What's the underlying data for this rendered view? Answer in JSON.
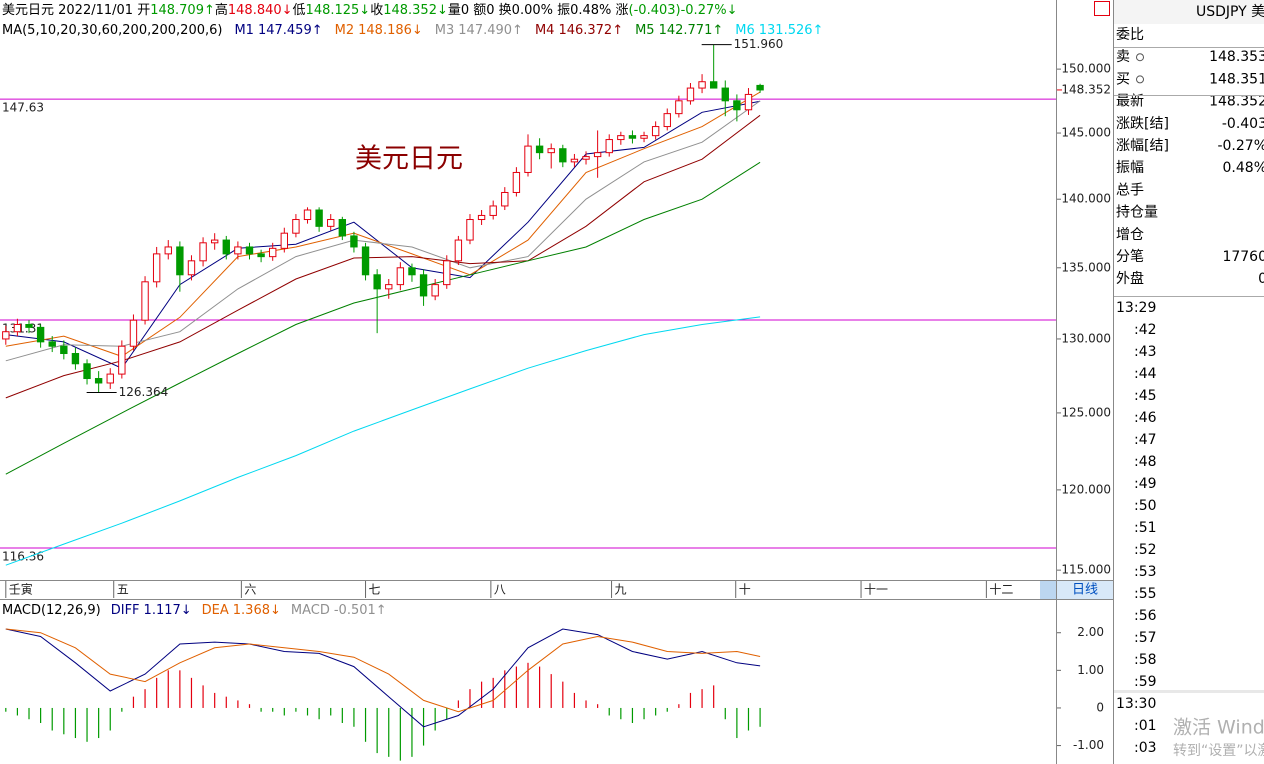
{
  "header": {
    "line1": [
      {
        "text": "美元日元 2022/11/01 开",
        "color": "#000000"
      },
      {
        "text": "148.709↑",
        "color": "#009a00"
      },
      {
        "text": "高",
        "color": "#000000"
      },
      {
        "text": "148.840↓",
        "color": "#e4000f"
      },
      {
        "text": "低",
        "color": "#000000"
      },
      {
        "text": "148.125↓",
        "color": "#009a00"
      },
      {
        "text": "收",
        "color": "#000000"
      },
      {
        "text": "148.352↓",
        "color": "#009a00"
      },
      {
        "text": "量0 额0 换0.00% 振0.48% 涨",
        "color": "#000000"
      },
      {
        "text": "(-0.403)-0.27%↓",
        "color": "#009a00"
      }
    ]
  },
  "chart_data": [
    {
      "type": "candlestick",
      "title": "美元日元",
      "legend_title": "MA(5,10,20,30,60,200,200,200,6)",
      "period": "日线",
      "log": true,
      "grid": false,
      "up_color": "#e4000f",
      "down_color": "#009a00",
      "hline_color": "#d000d0",
      "xlim": [
        -0.5,
        90.5
      ],
      "ylim": [
        114.4,
        155.6
      ],
      "xticks": [
        {
          "value": 0,
          "label": "壬寅"
        },
        {
          "value": 9.3,
          "label": "五"
        },
        {
          "value": 20.3,
          "label": "六"
        },
        {
          "value": 31,
          "label": "七"
        },
        {
          "value": 41.8,
          "label": "八"
        },
        {
          "value": 52.2,
          "label": "九"
        },
        {
          "value": 62.9,
          "label": "十"
        },
        {
          "value": 73.7,
          "label": "十一"
        },
        {
          "value": 84.5,
          "label": "十二"
        }
      ],
      "yticks": [
        {
          "value": 150,
          "label": "150.000"
        },
        {
          "value": 145,
          "label": "145.000"
        },
        {
          "value": 140,
          "label": "140.000"
        },
        {
          "value": 135,
          "label": "135.000"
        },
        {
          "value": 130,
          "label": "130.000"
        },
        {
          "value": 125,
          "label": "125.000"
        },
        {
          "value": 120,
          "label": "120.000"
        },
        {
          "value": 115,
          "label": "115.000"
        }
      ],
      "x": [
        0,
        1,
        2,
        3,
        4,
        5,
        6,
        7,
        8,
        9,
        10,
        11,
        12,
        13,
        14,
        15,
        16,
        17,
        18,
        19,
        20,
        21,
        22,
        23,
        24,
        25,
        26,
        27,
        28,
        29,
        30,
        31,
        32,
        33,
        34,
        35,
        36,
        37,
        38,
        39,
        40,
        41,
        42,
        43,
        44,
        45,
        46,
        47,
        48,
        49,
        50,
        51,
        52,
        53,
        54,
        55,
        56,
        57,
        58,
        59,
        60,
        61,
        62,
        63,
        64,
        65
      ],
      "open": [
        130.0,
        130.5,
        131.0,
        130.8,
        129.8,
        129.5,
        129.0,
        128.3,
        127.3,
        127.0,
        127.6,
        129.5,
        131.3,
        134.0,
        136.0,
        136.5,
        134.5,
        135.5,
        136.8,
        137.0,
        136.0,
        136.5,
        136.0,
        135.8,
        136.4,
        137.5,
        138.5,
        139.2,
        138.0,
        138.5,
        137.3,
        136.5,
        134.5,
        133.5,
        133.8,
        135.0,
        134.5,
        133.0,
        133.8,
        135.5,
        137.0,
        138.5,
        138.8,
        139.5,
        140.5,
        142.0,
        144.0,
        143.5,
        143.8,
        142.8,
        143.0,
        143.2,
        143.5,
        144.5,
        144.8,
        144.6,
        144.8,
        145.5,
        146.5,
        147.5,
        148.5,
        149.0,
        148.5,
        147.5,
        146.8,
        148.709
      ],
      "high": [
        130.9,
        131.4,
        131.3,
        131.0,
        130.2,
        129.9,
        129.4,
        128.6,
        127.8,
        128.0,
        129.9,
        131.7,
        134.4,
        136.5,
        137.0,
        136.9,
        135.9,
        137.2,
        137.5,
        137.3,
        136.9,
        136.8,
        136.3,
        136.8,
        137.9,
        138.9,
        139.4,
        139.4,
        138.9,
        138.7,
        137.6,
        136.8,
        134.9,
        134.2,
        135.4,
        135.3,
        134.9,
        134.2,
        135.9,
        137.3,
        138.9,
        139.2,
        139.9,
        140.9,
        142.4,
        144.9,
        144.6,
        144.2,
        144.1,
        143.4,
        143.6,
        145.2,
        144.9,
        145.1,
        145.2,
        145.1,
        145.9,
        146.9,
        147.9,
        148.9,
        149.6,
        151.96,
        149.1,
        148.0,
        148.5,
        148.84
      ],
      "low": [
        129.6,
        130.2,
        130.4,
        129.4,
        129.1,
        128.6,
        127.9,
        126.9,
        126.364,
        126.6,
        127.3,
        129.2,
        131.0,
        133.6,
        135.6,
        133.3,
        134.1,
        135.1,
        136.3,
        135.6,
        135.6,
        135.6,
        135.4,
        135.5,
        136.1,
        137.2,
        138.2,
        137.6,
        137.7,
        137.0,
        136.1,
        134.1,
        130.4,
        132.8,
        133.4,
        134.0,
        132.3,
        132.7,
        133.5,
        135.2,
        136.7,
        138.1,
        138.5,
        139.2,
        140.2,
        141.7,
        143.0,
        142.3,
        142.4,
        142.4,
        142.6,
        141.6,
        143.2,
        144.1,
        144.2,
        144.3,
        144.5,
        145.2,
        146.2,
        147.2,
        148.1,
        148.6,
        146.3,
        145.9,
        146.4,
        148.125
      ],
      "close": [
        130.5,
        131.0,
        130.8,
        129.8,
        129.5,
        129.0,
        128.3,
        127.3,
        127.0,
        127.6,
        129.5,
        131.3,
        134.0,
        136.0,
        136.5,
        134.5,
        135.5,
        136.8,
        137.0,
        136.0,
        136.5,
        136.0,
        135.8,
        136.4,
        137.5,
        138.5,
        139.2,
        138.0,
        138.5,
        137.3,
        136.5,
        134.5,
        133.5,
        133.8,
        135.0,
        134.5,
        133.0,
        133.8,
        135.5,
        137.0,
        138.5,
        138.8,
        139.5,
        140.5,
        142.0,
        144.0,
        143.5,
        143.8,
        142.8,
        143.0,
        143.2,
        143.5,
        144.5,
        144.8,
        144.6,
        144.8,
        145.5,
        146.5,
        147.5,
        148.5,
        149.0,
        148.5,
        147.5,
        146.8,
        148.0,
        148.352
      ],
      "lines": [
        {
          "name": "M1",
          "label": "147.459↑",
          "color": "#000080",
          "x": [
            0,
            5,
            10,
            15,
            20,
            25,
            30,
            35,
            40,
            45,
            50,
            55,
            60,
            65
          ],
          "values": [
            130.3,
            129.8,
            128.0,
            133.8,
            136.4,
            136.7,
            138.3,
            135.0,
            134.3,
            138.3,
            143.4,
            143.9,
            146.6,
            147.459
          ]
        },
        {
          "name": "M2",
          "label": "148.186↓",
          "color": "#e06000",
          "x": [
            0,
            5,
            10,
            15,
            20,
            25,
            30,
            35,
            40,
            45,
            50,
            55,
            60,
            65
          ],
          "values": [
            129.5,
            130.2,
            128.8,
            131.5,
            135.8,
            136.5,
            137.5,
            136.0,
            134.5,
            137.0,
            142.0,
            143.8,
            145.5,
            148.186
          ]
        },
        {
          "name": "M3",
          "label": "147.490↑",
          "color": "#909090",
          "x": [
            0,
            5,
            10,
            15,
            20,
            25,
            30,
            35,
            40,
            45,
            50,
            55,
            60,
            65
          ],
          "values": [
            128.5,
            129.6,
            129.5,
            130.5,
            133.5,
            135.8,
            137.0,
            136.5,
            135.0,
            135.8,
            140.0,
            142.8,
            144.3,
            147.49
          ]
        },
        {
          "name": "M4",
          "label": "146.372↑",
          "color": "#900000",
          "x": [
            0,
            5,
            10,
            15,
            20,
            25,
            30,
            35,
            40,
            45,
            50,
            55,
            60,
            65
          ],
          "values": [
            126.0,
            127.5,
            128.5,
            129.8,
            132.0,
            134.2,
            135.7,
            135.8,
            135.3,
            135.5,
            138.0,
            141.3,
            143.0,
            146.372
          ]
        },
        {
          "name": "M5",
          "label": "142.771↑",
          "color": "#008000",
          "x": [
            0,
            5,
            10,
            15,
            20,
            25,
            30,
            35,
            40,
            45,
            50,
            55,
            60,
            65
          ],
          "values": [
            121.0,
            123.0,
            125.0,
            127.0,
            129.0,
            131.0,
            132.5,
            133.5,
            134.5,
            135.5,
            136.5,
            138.5,
            140.0,
            142.771
          ]
        },
        {
          "name": "M6",
          "label": "131.526↑",
          "color": "#00d8f0",
          "x": [
            0,
            5,
            10,
            15,
            20,
            25,
            30,
            35,
            40,
            45,
            50,
            55,
            60,
            65
          ],
          "values": [
            115.3,
            116.6,
            117.9,
            119.3,
            120.8,
            122.2,
            123.8,
            125.2,
            126.6,
            128.0,
            129.2,
            130.3,
            131.0,
            131.526
          ]
        }
      ],
      "hlines": [
        147.63,
        131.31,
        116.36
      ],
      "annotations": [
        {
          "x": 61,
          "y": 151.96,
          "label": "151.960"
        },
        {
          "x": 8,
          "y": 126.364,
          "label": "126.364"
        }
      ],
      "last_price": {
        "value": 148.352,
        "label": "148.352",
        "color": "#e4000f"
      }
    },
    {
      "type": "macd",
      "title": "MACD(12,26,9)",
      "up_color": "#e4000f",
      "down_color": "#009a00",
      "ylim": [
        -1.49,
        2.87
      ],
      "yticks": [
        {
          "value": 2,
          "label": "2.00"
        },
        {
          "value": 1,
          "label": "1.00"
        },
        0,
        {
          "value": -1,
          "label": "-1.00"
        }
      ],
      "histogram": {
        "name": "MACD",
        "label": "-0.501↑",
        "color": "#909090",
        "values": [
          -0.1,
          -0.2,
          -0.3,
          -0.4,
          -0.6,
          -0.7,
          -0.8,
          -0.9,
          -0.8,
          -0.6,
          -0.1,
          0.3,
          0.5,
          0.8,
          1.0,
          1.0,
          0.8,
          0.6,
          0.4,
          0.3,
          0.2,
          0.1,
          -0.1,
          -0.1,
          -0.2,
          -0.1,
          -0.2,
          -0.3,
          -0.2,
          -0.4,
          -0.5,
          -0.9,
          -1.2,
          -1.3,
          -1.4,
          -1.3,
          -1.0,
          -0.6,
          -0.3,
          0.2,
          0.5,
          0.7,
          0.8,
          1.0,
          1.1,
          1.2,
          1.1,
          0.9,
          0.7,
          0.4,
          0.2,
          0.1,
          -0.2,
          -0.3,
          -0.4,
          -0.3,
          -0.2,
          -0.1,
          0.1,
          0.4,
          0.5,
          0.6,
          -0.3,
          -0.8,
          -0.6,
          -0.501
        ]
      },
      "lines": [
        {
          "name": "DIFF",
          "label": "1.117↓",
          "color": "#000080",
          "x": [
            0,
            3,
            6,
            9,
            12,
            15,
            18,
            21,
            24,
            27,
            30,
            33,
            36,
            39,
            42,
            45,
            48,
            51,
            54,
            57,
            60,
            63,
            65
          ],
          "values": [
            2.1,
            1.9,
            1.2,
            0.45,
            0.9,
            1.7,
            1.75,
            1.7,
            1.5,
            1.45,
            1.1,
            0.3,
            -0.5,
            -0.2,
            0.5,
            1.6,
            2.1,
            1.95,
            1.5,
            1.3,
            1.5,
            1.2,
            1.117
          ]
        },
        {
          "name": "DEA",
          "label": "1.368↓",
          "color": "#e06000",
          "x": [
            0,
            3,
            6,
            9,
            12,
            15,
            18,
            21,
            24,
            27,
            30,
            33,
            36,
            39,
            42,
            45,
            48,
            51,
            54,
            57,
            60,
            63,
            65
          ],
          "values": [
            2.1,
            2.0,
            1.6,
            0.9,
            0.7,
            1.2,
            1.6,
            1.7,
            1.6,
            1.5,
            1.35,
            0.9,
            0.2,
            -0.1,
            0.2,
            1.0,
            1.7,
            1.9,
            1.75,
            1.5,
            1.45,
            1.5,
            1.368
          ]
        }
      ]
    }
  ],
  "quote_panel": {
    "symbol": "USDJPY 美",
    "rows": [
      {
        "label": "委比"
      },
      {
        "label": "卖",
        "value": "148.353",
        "color": "#000000"
      },
      {
        "label": "买",
        "value": "148.351",
        "color": "#000000"
      },
      {
        "label": "最新",
        "value": "148.352",
        "color": "#000000"
      },
      {
        "label": "涨跌[结]",
        "value": "-0.403",
        "color": "#009a00"
      },
      {
        "label": "涨幅[结]",
        "value": "-0.27%",
        "color": "#009a00"
      },
      {
        "label": "振幅",
        "value": "0.48%",
        "color": "#000000"
      },
      {
        "label": "总手"
      },
      {
        "label": "持仓量"
      },
      {
        "label": "增仓"
      },
      {
        "label": "分笔",
        "value": "17760",
        "color": "#000000"
      },
      {
        "label": "外盘",
        "value": "0",
        "color": "#e4000f"
      }
    ],
    "times": [
      "13:29",
      ":42",
      ":43",
      ":44",
      ":45",
      ":46",
      ":47",
      ":48",
      ":49",
      ":50",
      ":51",
      ":52",
      ":53",
      ":55",
      ":56",
      ":57",
      ":58",
      ":59",
      "13:30",
      ":01",
      ":03"
    ]
  },
  "watermark": [
    "激活 Windows",
    "转到“设置”以激活 Windows。"
  ]
}
